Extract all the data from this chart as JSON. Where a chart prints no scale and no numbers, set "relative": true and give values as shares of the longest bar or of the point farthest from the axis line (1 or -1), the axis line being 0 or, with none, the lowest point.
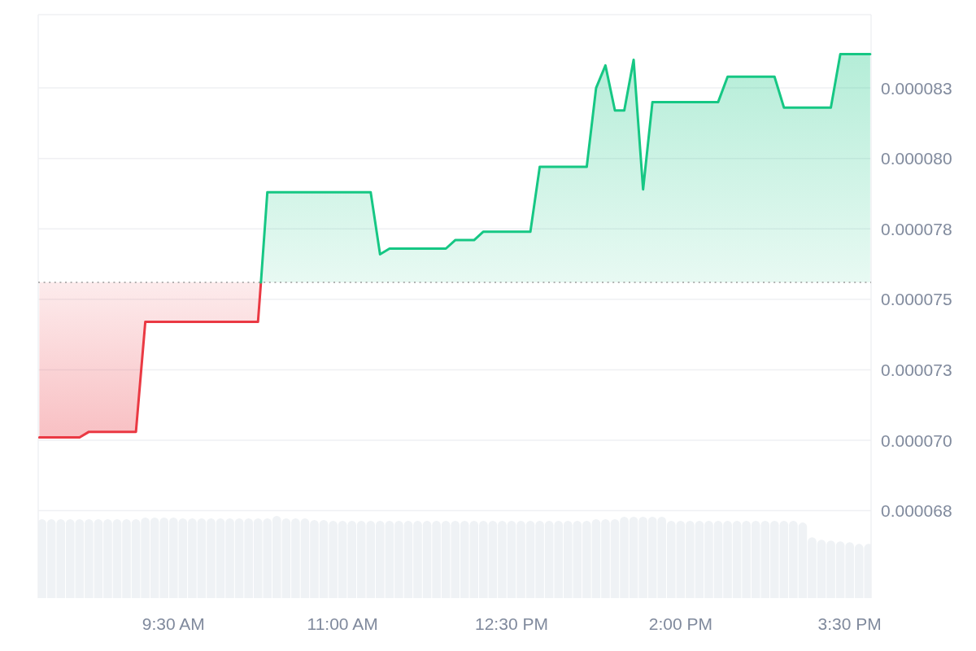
{
  "chart_data": [
    {
      "type": "line",
      "xlim": [
        8.3,
        15.69
      ],
      "xticks": [
        {
          "value": 9.5,
          "label": "9:30 AM"
        },
        {
          "value": 11,
          "label": "11:00 AM"
        },
        {
          "value": 12.5,
          "label": "12:30 PM"
        },
        {
          "value": 14,
          "label": "2:00 PM"
        },
        {
          "value": 15.5,
          "label": "3:30 PM"
        }
      ],
      "ylim": [
        6.44e-05,
        8.51e-05
      ],
      "yticks": [
        {
          "value": 6.75e-05,
          "label": "0.000068"
        },
        {
          "value": 7e-05,
          "label": "0.000070"
        },
        {
          "value": 7.25e-05,
          "label": "0.000073"
        },
        {
          "value": 7.5e-05,
          "label": "0.000075"
        },
        {
          "value": 7.75e-05,
          "label": "0.000078"
        },
        {
          "value": 8e-05,
          "label": "0.000080"
        },
        {
          "value": 8.25e-05,
          "label": "0.000083"
        }
      ],
      "grid": "y",
      "ref_lines": [
        {
          "axis": "y",
          "value": 7.56e-05,
          "color": "#9b9b9b",
          "line_style": "dotted"
        }
      ],
      "series": [
        {
          "color": "#ea3943",
          "x": [
            8.31,
            8.667,
            8.75,
            9.167,
            9.25,
            10.25,
            10.276
          ],
          "values": [
            7.01e-05,
            7.01e-05,
            7.03e-05,
            7.03e-05,
            7.42e-05,
            7.42e-05,
            7.56e-05
          ],
          "lower": [
            7.01e-05,
            7.01e-05,
            7.03e-05,
            7.03e-05,
            7.42e-05,
            7.42e-05,
            7.56e-05
          ],
          "upper": [
            7.56e-05,
            7.56e-05,
            7.56e-05,
            7.56e-05,
            7.56e-05,
            7.56e-05,
            7.56e-05
          ]
        },
        {
          "color": "#16c784",
          "x": [
            10.276,
            10.333,
            11.25,
            11.333,
            11.417,
            11.917,
            12,
            12.167,
            12.25,
            12.667,
            12.75,
            13.167,
            13.25,
            13.333,
            13.417,
            13.5,
            13.583,
            13.667,
            13.75,
            14.333,
            14.417,
            14.833,
            14.917,
            15.083,
            15.167,
            15.333,
            15.417,
            15.682
          ],
          "values": [
            7.56e-05,
            7.88e-05,
            7.88e-05,
            7.66e-05,
            7.68e-05,
            7.68e-05,
            7.71e-05,
            7.71e-05,
            7.74e-05,
            7.74e-05,
            7.97e-05,
            7.97e-05,
            8.25e-05,
            8.33e-05,
            8.17e-05,
            8.17e-05,
            8.35e-05,
            7.89e-05,
            8.2e-05,
            8.2e-05,
            8.29e-05,
            8.29e-05,
            8.18e-05,
            8.18e-05,
            8.18e-05,
            8.18e-05,
            8.37e-05,
            8.37e-05
          ],
          "lower": [
            7.56e-05,
            7.56e-05,
            7.56e-05,
            7.56e-05,
            7.56e-05,
            7.56e-05,
            7.56e-05,
            7.56e-05,
            7.56e-05,
            7.56e-05,
            7.56e-05,
            7.56e-05,
            7.56e-05,
            7.56e-05,
            7.56e-05,
            7.56e-05,
            7.56e-05,
            7.56e-05,
            7.56e-05,
            7.56e-05,
            7.56e-05,
            7.56e-05,
            7.56e-05,
            7.56e-05,
            7.56e-05,
            7.56e-05,
            7.56e-05,
            7.56e-05
          ],
          "upper": [
            7.56e-05,
            7.88e-05,
            7.88e-05,
            7.66e-05,
            7.68e-05,
            7.68e-05,
            7.71e-05,
            7.71e-05,
            7.74e-05,
            7.74e-05,
            7.97e-05,
            7.97e-05,
            8.25e-05,
            8.33e-05,
            8.17e-05,
            8.17e-05,
            8.35e-05,
            7.89e-05,
            8.2e-05,
            8.2e-05,
            8.29e-05,
            8.29e-05,
            8.18e-05,
            8.18e-05,
            8.18e-05,
            8.18e-05,
            8.37e-05,
            8.37e-05
          ]
        }
      ]
    },
    {
      "type": "bar",
      "relative": true,
      "xlim": [
        8.3,
        15.69
      ],
      "color": "#eff2f5",
      "x": [
        8.3333,
        8.4167,
        8.5,
        8.5833,
        8.6667,
        8.75,
        8.8333,
        8.9167,
        9,
        9.0833,
        9.1667,
        9.25,
        9.3333,
        9.4167,
        9.5,
        9.5833,
        9.6667,
        9.75,
        9.8333,
        9.9167,
        10,
        10.0833,
        10.1667,
        10.25,
        10.3333,
        10.4167,
        10.5,
        10.5833,
        10.6667,
        10.75,
        10.8333,
        10.9167,
        11,
        11.0833,
        11.1667,
        11.25,
        11.3333,
        11.4167,
        11.5,
        11.5833,
        11.6667,
        11.75,
        11.8333,
        11.9167,
        12,
        12.0833,
        12.1667,
        12.25,
        12.3333,
        12.4167,
        12.5,
        12.5833,
        12.6667,
        12.75,
        12.8333,
        12.9167,
        13,
        13.0833,
        13.1667,
        13.25,
        13.3333,
        13.4167,
        13.5,
        13.5833,
        13.6667,
        13.75,
        13.8333,
        13.9167,
        14,
        14.0833,
        14.1667,
        14.25,
        14.3333,
        14.4167,
        14.5,
        14.5833,
        14.6667,
        14.75,
        14.8333,
        14.9167,
        15,
        15.0833,
        15.1667,
        15.25,
        15.3333,
        15.4167,
        15.5,
        15.5833,
        15.6667
      ],
      "values": [
        0.96,
        0.96,
        0.96,
        0.96,
        0.96,
        0.96,
        0.96,
        0.96,
        0.96,
        0.96,
        0.96,
        0.98,
        0.98,
        0.98,
        0.98,
        0.97,
        0.97,
        0.97,
        0.97,
        0.97,
        0.97,
        0.97,
        0.97,
        0.97,
        0.97,
        1,
        0.97,
        0.97,
        0.97,
        0.95,
        0.95,
        0.94,
        0.94,
        0.94,
        0.94,
        0.94,
        0.94,
        0.94,
        0.94,
        0.94,
        0.94,
        0.94,
        0.94,
        0.94,
        0.94,
        0.94,
        0.94,
        0.94,
        0.94,
        0.94,
        0.94,
        0.94,
        0.94,
        0.94,
        0.94,
        0.94,
        0.94,
        0.94,
        0.94,
        0.96,
        0.96,
        0.96,
        0.99,
        0.99,
        0.99,
        0.99,
        0.99,
        0.94,
        0.94,
        0.94,
        0.94,
        0.94,
        0.94,
        0.94,
        0.94,
        0.94,
        0.94,
        0.94,
        0.94,
        0.94,
        0.94,
        0.92,
        0.74,
        0.71,
        0.7,
        0.69,
        0.68,
        0.66,
        0.66
      ]
    }
  ]
}
